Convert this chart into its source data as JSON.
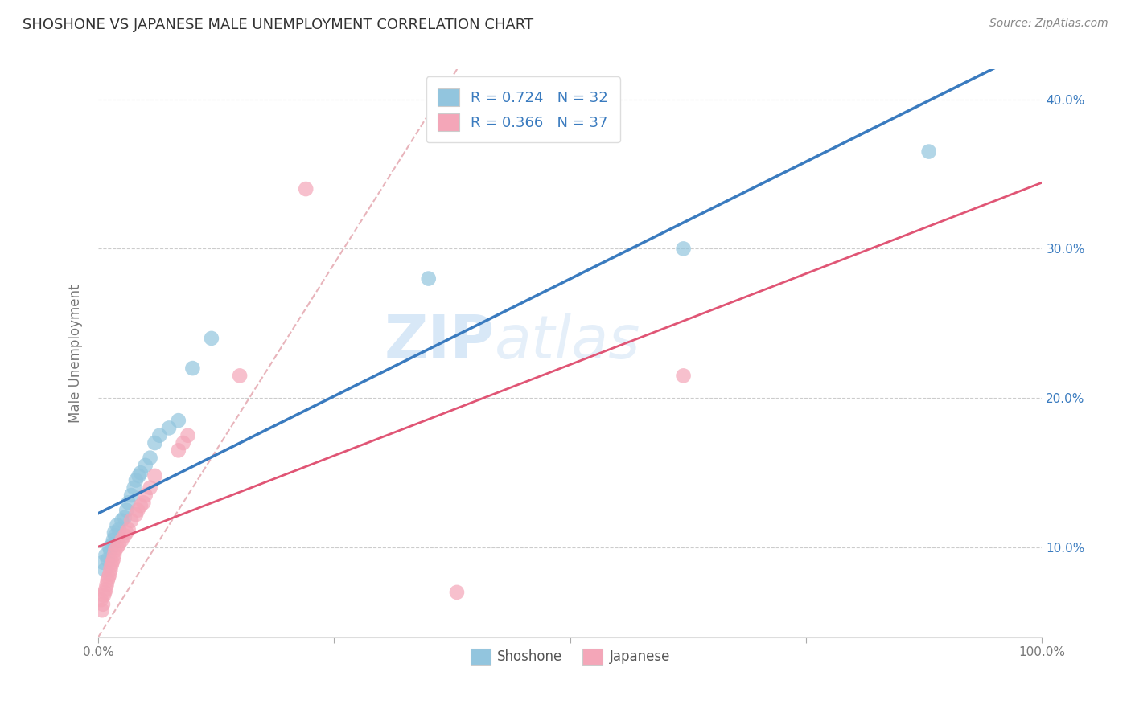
{
  "title": "SHOSHONE VS JAPANESE MALE UNEMPLOYMENT CORRELATION CHART",
  "source": "Source: ZipAtlas.com",
  "ylabel": "Male Unemployment",
  "shoshone_color": "#92c5de",
  "japanese_color": "#f4a6b8",
  "line_shoshone_color": "#3a7bbf",
  "line_japanese_color": "#e05575",
  "diagonal_color": "#e8b4bb",
  "R_shoshone": 0.724,
  "N_shoshone": 32,
  "R_japanese": 0.366,
  "N_japanese": 37,
  "shoshone_x": [
    0.005,
    0.007,
    0.008,
    0.01,
    0.012,
    0.013,
    0.015,
    0.016,
    0.017,
    0.018,
    0.02,
    0.022,
    0.025,
    0.028,
    0.03,
    0.032,
    0.035,
    0.038,
    0.04,
    0.043,
    0.045,
    0.05,
    0.055,
    0.06,
    0.065,
    0.075,
    0.085,
    0.1,
    0.12,
    0.35,
    0.62,
    0.88
  ],
  "shoshone_y": [
    0.09,
    0.085,
    0.095,
    0.092,
    0.1,
    0.098,
    0.102,
    0.105,
    0.11,
    0.108,
    0.115,
    0.112,
    0.118,
    0.12,
    0.125,
    0.13,
    0.135,
    0.14,
    0.145,
    0.148,
    0.15,
    0.155,
    0.16,
    0.17,
    0.175,
    0.18,
    0.185,
    0.22,
    0.24,
    0.28,
    0.3,
    0.365
  ],
  "japanese_x": [
    0.003,
    0.004,
    0.005,
    0.006,
    0.007,
    0.008,
    0.009,
    0.01,
    0.011,
    0.012,
    0.013,
    0.014,
    0.015,
    0.016,
    0.017,
    0.018,
    0.02,
    0.022,
    0.025,
    0.028,
    0.03,
    0.032,
    0.035,
    0.04,
    0.042,
    0.045,
    0.048,
    0.05,
    0.055,
    0.06,
    0.085,
    0.09,
    0.095,
    0.15,
    0.22,
    0.38,
    0.62
  ],
  "japanese_y": [
    0.065,
    0.058,
    0.062,
    0.068,
    0.07,
    0.072,
    0.075,
    0.078,
    0.08,
    0.082,
    0.085,
    0.088,
    0.09,
    0.092,
    0.095,
    0.098,
    0.1,
    0.102,
    0.105,
    0.108,
    0.11,
    0.112,
    0.118,
    0.122,
    0.125,
    0.128,
    0.13,
    0.135,
    0.14,
    0.148,
    0.165,
    0.17,
    0.175,
    0.215,
    0.34,
    0.07,
    0.215
  ],
  "watermark_zip": "ZIP",
  "watermark_atlas": "atlas",
  "legend_shoshone": "Shoshone",
  "legend_japanese": "Japanese",
  "background_color": "#ffffff",
  "grid_color": "#cccccc",
  "xlim": [
    0.0,
    1.0
  ],
  "ylim": [
    0.04,
    0.42
  ],
  "ytick_positions": [
    0.1,
    0.2,
    0.3,
    0.4
  ],
  "ytick_labels": [
    "10.0%",
    "20.0%",
    "30.0%",
    "40.0%"
  ],
  "xtick_positions": [
    0.0,
    0.25,
    0.5,
    0.75,
    1.0
  ],
  "xtick_labels": [
    "0.0%",
    "",
    "",
    "",
    "100.0%"
  ]
}
